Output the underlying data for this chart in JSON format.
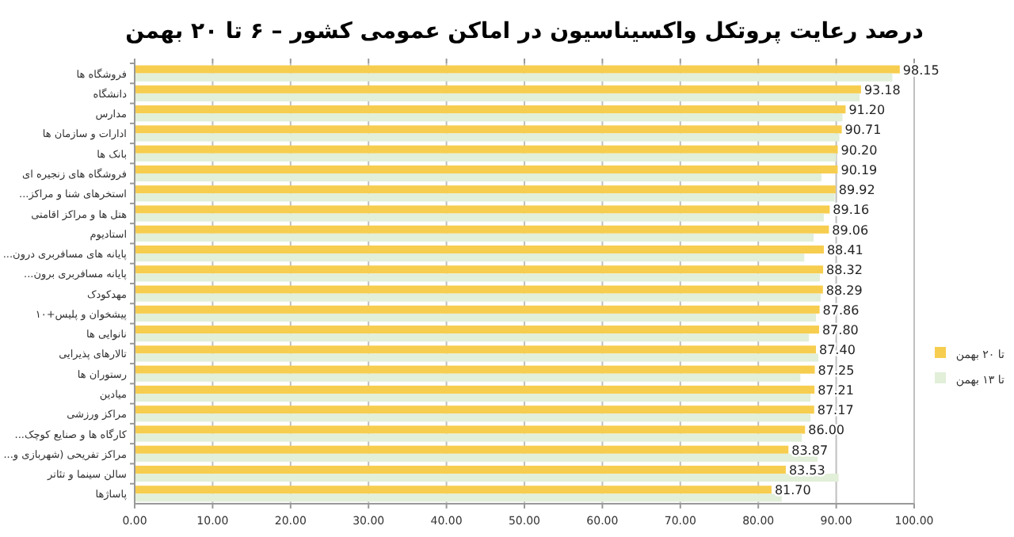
{
  "chart_data": {
    "type": "bar",
    "orientation": "horizontal",
    "title": "درصد رعایت پروتکل واکسیناسیون در اماکن عمومی کشور – ۶ تا ۲۰ بهمن",
    "categories": [
      "فروشگاه ها",
      "دانشگاه",
      "مدارس",
      "ادارات و سازمان ها",
      "بانک ها",
      "فروشگاه های زنجیره ای",
      "استخرهای شنا و مراکز...",
      "هتل ها و مراکز اقامتی",
      "استادیوم",
      "پایانه های مسافربری درون...",
      "پایانه مسافربری برون...",
      "مهدکودک",
      "پیشخوان و پلیس+۱۰",
      "نانوایی ها",
      "تالارهای پذیرایی",
      "رستوران ها",
      "میادین",
      "مراکز ورزشی",
      "کارگاه ها و صنایع کوچک...",
      "مراکز تفریحی (شهربازی و...",
      "سالن سینما و تئاتر",
      "پاساژها"
    ],
    "series": [
      {
        "name": "تا ۲۰ بهمن",
        "color": "#f7cd4f",
        "values": [
          98.15,
          93.18,
          91.2,
          90.71,
          90.2,
          90.19,
          89.92,
          89.16,
          89.06,
          88.41,
          88.32,
          88.29,
          87.86,
          87.8,
          87.4,
          87.25,
          87.21,
          87.17,
          86.0,
          83.87,
          83.53,
          81.7
        ],
        "value_labels": [
          "98.15",
          "93.18",
          "91.20",
          "90.71",
          "90.20",
          "90.19",
          "89.92",
          "89.16",
          "89.06",
          "88.41",
          "88.32",
          "88.29",
          "87.86",
          "87.80",
          "87.40",
          "87.25",
          "87.21",
          "87.17",
          "86.00",
          "83.87",
          "83.53",
          "81.70"
        ]
      },
      {
        "name": "تا ۱۳ بهمن",
        "color": "#e2efd9",
        "values": [
          97.2,
          93.0,
          90.8,
          90.4,
          90.0,
          88.1,
          89.8,
          88.4,
          87.1,
          85.9,
          87.9,
          88.0,
          87.4,
          86.5,
          87.7,
          85.4,
          86.7,
          86.7,
          85.6,
          87.6,
          90.3,
          83.0
        ]
      }
    ],
    "xlim": [
      0,
      100
    ],
    "xticks": [
      {
        "value": 0,
        "label": "0.00"
      },
      {
        "value": 10,
        "label": "10.00"
      },
      {
        "value": 20,
        "label": "20.00"
      },
      {
        "value": 30,
        "label": "30.00"
      },
      {
        "value": 40,
        "label": "40.00"
      },
      {
        "value": 50,
        "label": "50.00"
      },
      {
        "value": 60,
        "label": "60.00"
      },
      {
        "value": 70,
        "label": "70.00"
      },
      {
        "value": 80,
        "label": "80.00"
      },
      {
        "value": 90,
        "label": "90.00"
      },
      {
        "value": 100,
        "label": "100.00"
      }
    ],
    "grid": "x",
    "legend": "right"
  }
}
